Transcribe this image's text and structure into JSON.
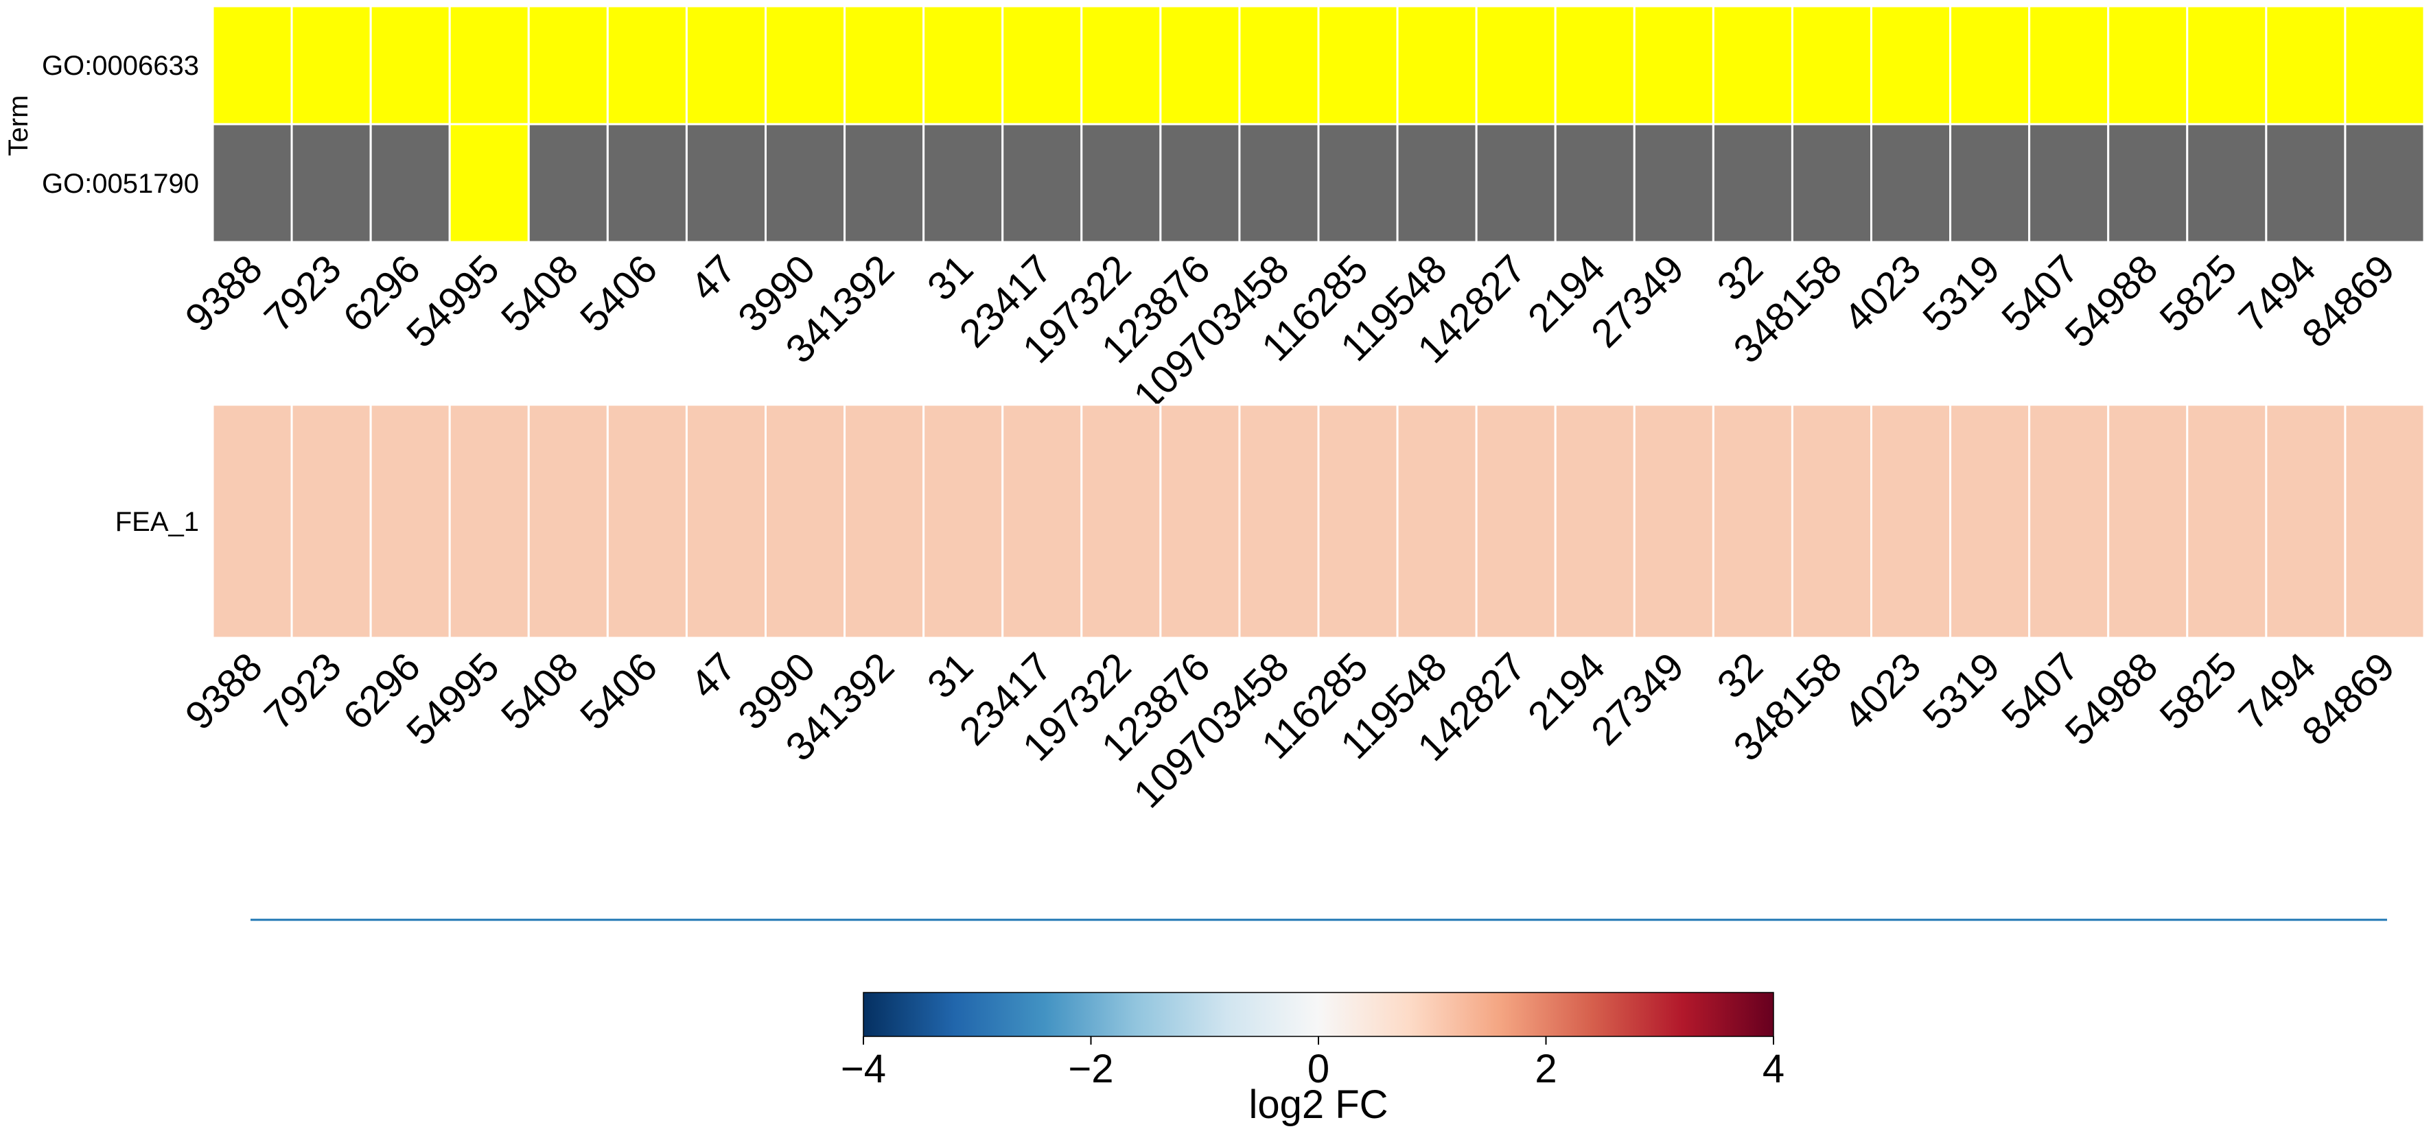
{
  "chart_data": [
    {
      "type": "heatmap",
      "ylabel": "Term",
      "rows": [
        "GO:0006633",
        "GO:0051790"
      ],
      "columns": [
        "9388",
        "7923",
        "6296",
        "54995",
        "5408",
        "5406",
        "47",
        "3990",
        "341392",
        "31",
        "23417",
        "197322",
        "123876",
        "109703458",
        "116285",
        "119548",
        "142827",
        "2194",
        "27349",
        "32",
        "348158",
        "4023",
        "5319",
        "5407",
        "54988",
        "5825",
        "7494",
        "84869"
      ],
      "values": [
        [
          1,
          1,
          1,
          1,
          1,
          1,
          1,
          1,
          1,
          1,
          1,
          1,
          1,
          1,
          1,
          1,
          1,
          1,
          1,
          1,
          1,
          1,
          1,
          1,
          1,
          1,
          1,
          1
        ],
        [
          0,
          0,
          0,
          1,
          0,
          0,
          0,
          0,
          0,
          0,
          0,
          0,
          0,
          0,
          0,
          0,
          0,
          0,
          0,
          0,
          0,
          0,
          0,
          0,
          0,
          0,
          0,
          0
        ]
      ],
      "colors": {
        "present": "#ffff00",
        "absent": "#696969",
        "grid": "#ffffff"
      }
    },
    {
      "type": "heatmap",
      "rows": [
        "FEA_1"
      ],
      "columns": [
        "9388",
        "7923",
        "6296",
        "54995",
        "5408",
        "5406",
        "47",
        "3990",
        "341392",
        "31",
        "23417",
        "197322",
        "123876",
        "109703458",
        "116285",
        "119548",
        "142827",
        "2194",
        "27349",
        "32",
        "348158",
        "4023",
        "5319",
        "5407",
        "54988",
        "5825",
        "7494",
        "84869"
      ],
      "values": [
        [
          0.8,
          0.8,
          0.8,
          0.8,
          0.8,
          0.8,
          0.8,
          0.8,
          0.8,
          0.8,
          0.8,
          0.8,
          0.8,
          0.8,
          0.8,
          0.8,
          0.8,
          0.8,
          0.8,
          0.8,
          0.8,
          0.8,
          0.8,
          0.8,
          0.8,
          0.8,
          0.8,
          0.8
        ]
      ],
      "colors": {
        "cell": "#f8cbb3",
        "grid": "#ffffff"
      }
    },
    {
      "type": "line",
      "x": [
        0,
        1
      ],
      "y": [
        0,
        0
      ],
      "colors": {
        "line": "#1f77b4"
      }
    },
    {
      "type": "colorbar",
      "label": "log2 FC",
      "vmin": -4,
      "vmax": 4,
      "ticks": [
        -4,
        -2,
        0,
        2,
        4
      ],
      "tick_labels": [
        "−4",
        "−2",
        "0",
        "2",
        "4"
      ],
      "colormap": "RdBu_r",
      "gradient_stops": [
        "#053061",
        "#2166ac",
        "#4393c3",
        "#92c5de",
        "#d1e5f0",
        "#f7f7f7",
        "#fddbc7",
        "#f4a582",
        "#d6604d",
        "#b2182b",
        "#67001f"
      ]
    }
  ]
}
